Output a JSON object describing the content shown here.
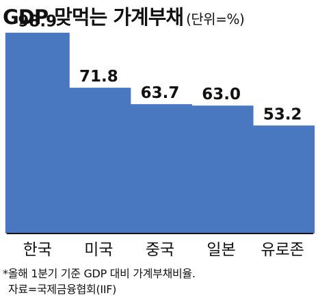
{
  "chart_data": {
    "type": "bar",
    "title": "GDP 맞먹는 가계부채",
    "unit_label": "(단위=%)",
    "categories": [
      "한국",
      "미국",
      "중국",
      "일본",
      "유로존"
    ],
    "series": [
      {
        "values": [
          98.9,
          71.8,
          63.7,
          63.0,
          53.2
        ]
      }
    ],
    "value_labels": [
      "98.9",
      "71.8",
      "63.7",
      "63.0",
      "53.2"
    ],
    "ylim": [
      0,
      115
    ],
    "bar_color": "#4a78c0",
    "grid": false,
    "legend": "none"
  },
  "footnotes": {
    "note": "*올해 1분기 기준 GDP 대비 가계부채비율.",
    "source": "자료=국제금융협회(IIF)"
  }
}
